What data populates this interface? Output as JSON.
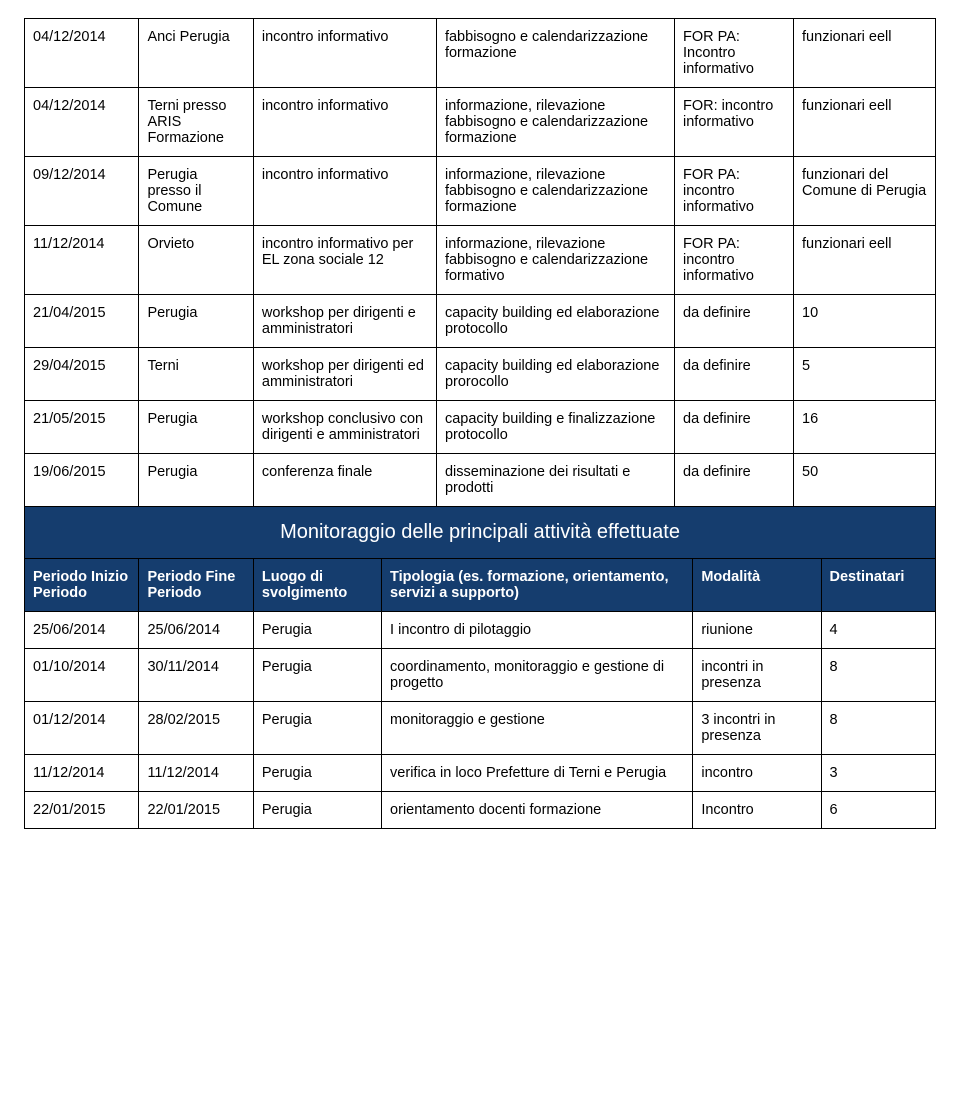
{
  "table1": {
    "rows": [
      {
        "c0": "04/12/2014",
        "c1": "Anci Perugia",
        "c2": "incontro informativo",
        "c3": "fabbisogno e calendarizzazione formazione",
        "c4": "FOR PA: Incontro informativo",
        "c5": "funzionari eell"
      },
      {
        "c0": "04/12/2014",
        "c1": "Terni presso ARIS Formazione",
        "c2": "incontro informativo",
        "c3": "informazione, rilevazione fabbisogno e calendarizzazione formazione",
        "c4": "FOR: incontro informativo",
        "c5": "funzionari eell"
      },
      {
        "c0": "09/12/2014",
        "c1": "Perugia presso il Comune",
        "c2": "incontro informativo",
        "c3": "informazione, rilevazione fabbisogno e calendarizzazione formazione",
        "c4": "FOR PA: incontro informativo",
        "c5": "funzionari del Comune di Perugia"
      },
      {
        "c0": "11/12/2014",
        "c1": "Orvieto",
        "c2": "incontro informativo per EL zona sociale 12",
        "c3": "informazione, rilevazione fabbisogno e calendarizzazione formativo",
        "c4": "FOR PA: incontro informativo",
        "c5": "funzionari eell"
      },
      {
        "c0": "21/04/2015",
        "c1": "Perugia",
        "c2": "workshop per dirigenti e amministratori",
        "c3": "capacity building ed elaborazione protocollo",
        "c4": "da definire",
        "c5": "10"
      },
      {
        "c0": "29/04/2015",
        "c1": "Terni",
        "c2": "workshop per dirigenti ed amministratori",
        "c3": "capacity building ed elaborazione prorocollo",
        "c4": "da definire",
        "c5": "5"
      },
      {
        "c0": "21/05/2015",
        "c1": "Perugia",
        "c2": "workshop conclusivo con dirigenti e amministratori",
        "c3": "capacity building e finalizzazione protocollo",
        "c4": "da definire",
        "c5": "16"
      },
      {
        "c0": "19/06/2015",
        "c1": "Perugia",
        "c2": "conferenza finale",
        "c3": "disseminazione dei risultati e prodotti",
        "c4": "da definire",
        "c5": "50"
      }
    ]
  },
  "banner": "Monitoraggio delle principali attività effettuate",
  "table2": {
    "headers": {
      "c0": "Periodo Inizio Periodo",
      "c1": "Periodo Fine Periodo",
      "c2": "Luogo di svolgimento",
      "c3": "Tipologia (es. formazione, orientamento, servizi a supporto)",
      "c4": "Modalità",
      "c5": "Destinatari"
    },
    "rows": [
      {
        "c0": "25/06/2014",
        "c1": "25/06/2014",
        "c2": "Perugia",
        "c3": "I incontro di pilotaggio",
        "c4": "riunione",
        "c5": "4"
      },
      {
        "c0": "01/10/2014",
        "c1": "30/11/2014",
        "c2": "Perugia",
        "c3": "coordinamento, monitoraggio e gestione di progetto",
        "c4": "incontri in presenza",
        "c5": "8"
      },
      {
        "c0": "01/12/2014",
        "c1": "28/02/2015",
        "c2": "Perugia",
        "c3": "monitoraggio e gestione",
        "c4": "3 incontri in presenza",
        "c5": "8"
      },
      {
        "c0": "11/12/2014",
        "c1": "11/12/2014",
        "c2": "Perugia",
        "c3": "verifica in loco Prefetture di Terni e Perugia",
        "c4": "incontro",
        "c5": "3"
      },
      {
        "c0": "22/01/2015",
        "c1": "22/01/2015",
        "c2": "Perugia",
        "c3": "orientamento docenti formazione",
        "c4": "Incontro",
        "c5": "6"
      }
    ]
  },
  "colors": {
    "banner_bg": "#153d6e",
    "banner_fg": "#ffffff",
    "border": "#000000"
  }
}
